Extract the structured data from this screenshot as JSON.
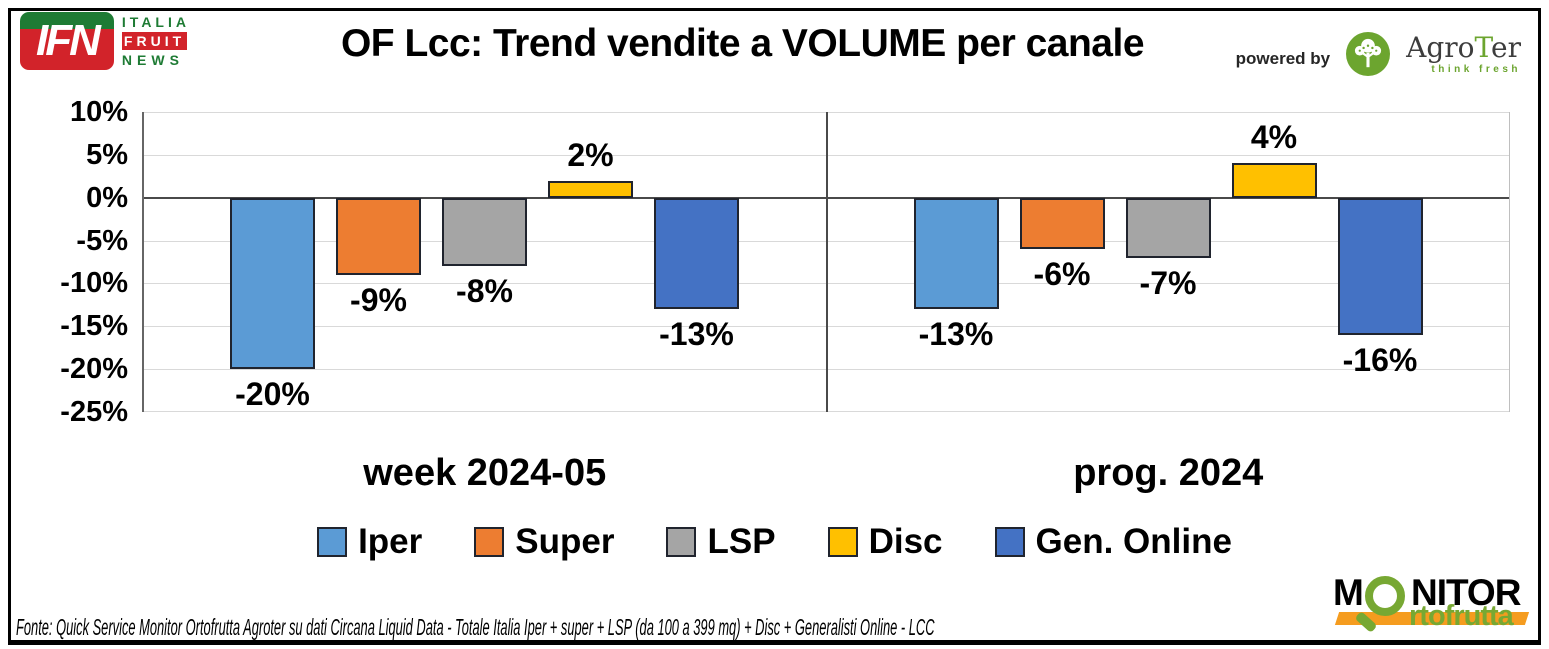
{
  "header": {
    "title": "OF Lcc: Trend vendite a VOLUME per canale",
    "ifn_logo": {
      "ifn": "IFN",
      "italia": "ITALIA",
      "fruit": "FRUIT",
      "news": "NEWS"
    },
    "powered_by": "powered by",
    "agroter": {
      "agro": "Agro",
      "t": "T",
      "er": "er",
      "tagline": "think fresh"
    }
  },
  "colors": {
    "ifn-green": "#1E7B34",
    "ifn-red": "#D2232A",
    "agroter-green": "#6CA52F",
    "monitor-green": "#77A833",
    "monitor-orange": "#F59C1F"
  },
  "chart_data": {
    "type": "bar",
    "title": "OF Lcc: Trend vendite a VOLUME per canale",
    "categories": [
      "week 2024-05",
      "prog. 2024"
    ],
    "series": [
      {
        "name": "Iper",
        "color": "#5B9BD5",
        "values": [
          -20,
          -13
        ]
      },
      {
        "name": "Super",
        "color": "#ED7D31",
        "values": [
          -9,
          -6
        ]
      },
      {
        "name": "LSP",
        "color": "#A5A5A5",
        "values": [
          -8,
          -7
        ]
      },
      {
        "name": "Disc",
        "color": "#FFC000",
        "values": [
          2,
          4
        ]
      },
      {
        "name": "Gen. Online",
        "color": "#4472C4",
        "values": [
          -13,
          -16
        ]
      }
    ],
    "value_suffix": "%",
    "ylim": [
      -25,
      10
    ],
    "yticks": [
      10,
      5,
      0,
      -5,
      -10,
      -15,
      -20,
      -25
    ],
    "grid": true,
    "legend_position": "bottom",
    "data_labels": true
  },
  "monitor_logo": {
    "m": "M",
    "nitor": "NITOR",
    "sub": "rtofrutta"
  },
  "footer": {
    "source": "Fonte: Quick Service Monitor Ortofrutta Agroter su dati Circana Liquid Data - Totale Italia Iper + super + LSP (da 100 a 399 mq) + Disc + Generalisti Online - LCC"
  }
}
